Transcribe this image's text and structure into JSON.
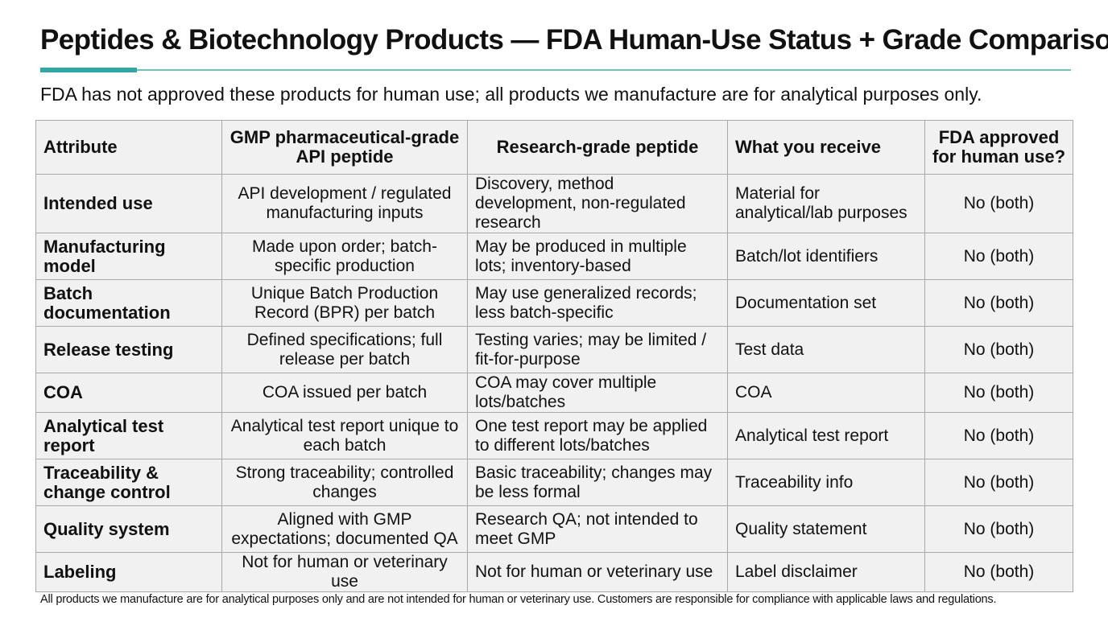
{
  "title": "Peptides & Biotechnology Products — FDA Human-Use Status + Grade Comparison",
  "subtitle": "FDA has not approved these products for human use; all products we manufacture are for analytical purposes only.",
  "table": {
    "headers": [
      "Attribute",
      "GMP pharmaceutical-grade API peptide",
      "Research-grade peptide",
      "What you receive",
      "FDA approved for human use?"
    ],
    "rows": [
      [
        "Intended use",
        "API development / regulated manufacturing inputs",
        "Discovery, method development, non-regulated research",
        "Material for analytical/lab purposes",
        "No (both)"
      ],
      [
        "Manufacturing model",
        "Made upon order; batch-specific production",
        "May be produced in multiple lots; inventory-based",
        "Batch/lot identifiers",
        "No (both)"
      ],
      [
        "Batch documentation",
        "Unique Batch Production Record (BPR) per batch",
        "May use generalized records; less batch-specific",
        "Documentation set",
        "No (both)"
      ],
      [
        "Release testing",
        "Defined specifications; full release per batch",
        "Testing varies; may be limited / fit-for-purpose",
        "Test data",
        "No (both)"
      ],
      [
        "COA",
        "COA issued per batch",
        "COA may cover multiple lots/batches",
        "COA",
        "No (both)"
      ],
      [
        "Analytical test report",
        "Analytical test report unique to each batch",
        "One test report may be applied to different lots/batches",
        "Analytical test report",
        "No (both)"
      ],
      [
        "Traceability & change control",
        "Strong traceability; controlled changes",
        "Basic traceability; changes may be less formal",
        "Traceability info",
        "No (both)"
      ],
      [
        "Quality system",
        "Aligned with GMP expectations; documented QA",
        "Research QA; not intended to meet GMP",
        "Quality statement",
        "No (both)"
      ],
      [
        "Labeling",
        "Not for human or veterinary use",
        "Not for human or veterinary use",
        "Label disclaimer",
        "No (both)"
      ]
    ]
  },
  "footer": "All products we manufacture are for analytical purposes only and are not intended for human or veterinary use. Customers are responsible for compliance with applicable laws and regulations.",
  "colors": {
    "accent": "#2fa8a3",
    "rule": "#6cc2bd",
    "cell_background": "#f1f1f1",
    "border": "#a9a9a9"
  }
}
